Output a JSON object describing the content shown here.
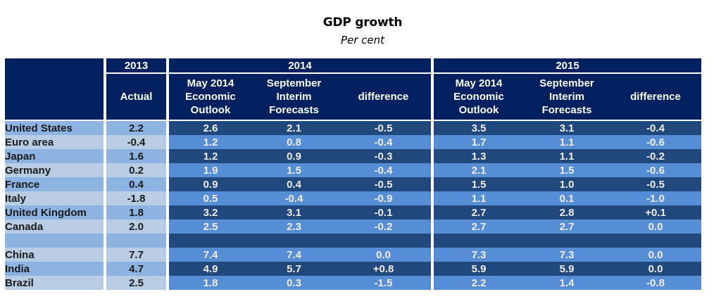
{
  "chart_data": {
    "type": "table",
    "title": "GDP growth",
    "subtitle": "Per cent",
    "year_headers": [
      "2013",
      "2014",
      "2015"
    ],
    "column_headers": [
      "Actual",
      "May 2014\nEconomic\nOutlook",
      "September\nInterim\nForecasts",
      "difference",
      "May 2014\nEconomic\nOutlook",
      "September\nInterim\nForecasts",
      "difference"
    ],
    "column_header_lines": {
      "actual": [
        "Actual"
      ],
      "may": [
        "May 2014",
        "Economic",
        "Outlook"
      ],
      "sept": [
        "September",
        "Interim",
        "Forecasts"
      ],
      "diff": [
        "difference"
      ]
    },
    "rows": [
      {
        "country": "United States",
        "values": [
          "2.2",
          "2.6",
          "2.1",
          "-0.5",
          "3.5",
          "3.1",
          "-0.4"
        ]
      },
      {
        "country": "Euro area",
        "values": [
          "-0.4",
          "1.2",
          "0.8",
          "-0.4",
          "1.7",
          "1.1",
          "-0.6"
        ]
      },
      {
        "country": "Japan",
        "values": [
          "1.6",
          "1.2",
          "0.9",
          "-0.3",
          "1.3",
          "1.1",
          "-0.2"
        ]
      },
      {
        "country": "Germany",
        "values": [
          "0.2",
          "1.9",
          "1.5",
          "-0.4",
          "2.1",
          "1.5",
          "-0.6"
        ]
      },
      {
        "country": "France",
        "values": [
          "0.4",
          "0.9",
          "0.4",
          "-0.5",
          "1.5",
          "1.0",
          "-0.5"
        ]
      },
      {
        "country": "Italy",
        "values": [
          "-1.8",
          "0.5",
          "-0.4",
          "-0.9",
          "1.1",
          "0.1",
          "-1.0"
        ]
      },
      {
        "country": "United Kingdom",
        "values": [
          "1.8",
          "3.2",
          "3.1",
          "-0.1",
          "2.7",
          "2.8",
          "+0.1"
        ]
      },
      {
        "country": "Canada",
        "values": [
          "2.0",
          "2.5",
          "2.3",
          "-0.2",
          "2.7",
          "2.7",
          "0.0"
        ]
      },
      {
        "country": "",
        "values": [
          "",
          "",
          "",
          "",
          "",
          "",
          ""
        ]
      },
      {
        "country": "China",
        "values": [
          "7.7",
          "7.4",
          "7.4",
          "0.0",
          "7.3",
          "7.3",
          "0.0"
        ]
      },
      {
        "country": "India",
        "values": [
          "4.7",
          "4.9",
          "5.7",
          "+0.8",
          "5.9",
          "5.9",
          "0.0"
        ]
      },
      {
        "country": "Brazil",
        "values": [
          "2.5",
          "1.8",
          "0.3",
          "-1.5",
          "2.2",
          "1.4",
          "-0.8"
        ]
      }
    ],
    "colors": {
      "header_bg": "#002060",
      "label_dark": "#8db3e2",
      "label_light": "#b8cce4",
      "data_dark": "#1f497d",
      "data_light": "#558ed5"
    }
  }
}
